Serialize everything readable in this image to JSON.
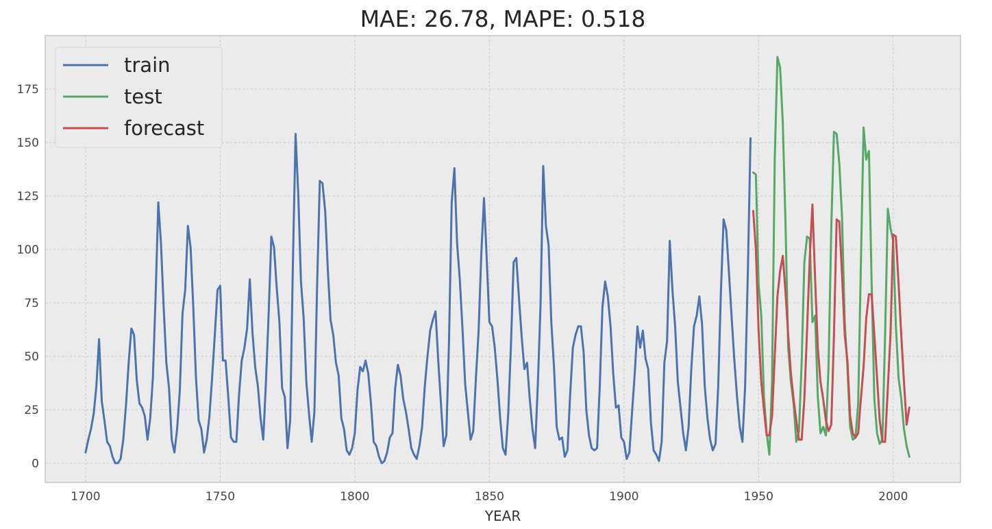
{
  "chart_data": {
    "type": "line",
    "title": "MAE: 26.78, MAPE: 0.518",
    "xlabel": "YEAR",
    "ylabel": "",
    "xlim": [
      1685,
      2025
    ],
    "ylim": [
      -9,
      200
    ],
    "xticks": [
      1700,
      1750,
      1800,
      1850,
      1900,
      1950,
      2000
    ],
    "yticks": [
      0,
      25,
      50,
      75,
      100,
      125,
      150,
      175
    ],
    "grid": true,
    "legend_position": "top-left",
    "background": "#ebebeb",
    "series": [
      {
        "name": "train",
        "color": "#4c72b0",
        "x_start": 1700,
        "values": [
          5,
          11,
          16,
          23,
          36,
          58,
          29,
          20,
          10,
          8,
          3,
          0,
          0,
          2,
          11,
          27,
          47,
          63,
          60,
          39,
          28,
          26,
          22,
          11,
          21,
          40,
          78,
          122,
          103,
          73,
          47,
          35,
          11,
          5,
          16,
          34,
          70,
          81,
          111,
          101,
          73,
          40,
          20,
          16,
          5,
          11,
          22,
          40,
          60,
          81,
          83,
          48,
          48,
          31,
          12,
          10,
          10,
          32,
          48,
          54,
          63,
          86,
          61,
          45,
          36,
          21,
          11,
          38,
          70,
          106,
          101,
          82,
          66,
          35,
          31,
          7,
          20,
          93,
          154,
          126,
          85,
          68,
          38,
          23,
          10,
          24,
          83,
          132,
          131,
          118,
          90,
          67,
          60,
          47,
          41,
          21,
          16,
          6,
          4,
          7,
          14,
          34,
          45,
          43,
          48,
          42,
          28,
          10,
          8,
          3,
          0,
          1,
          5,
          12,
          14,
          35,
          46,
          41,
          30,
          24,
          16,
          7,
          4,
          2,
          8,
          17,
          36,
          50,
          62,
          67,
          71,
          48,
          28,
          8,
          13,
          57,
          122,
          138,
          103,
          86,
          63,
          37,
          24,
          11,
          15,
          40,
          62,
          98,
          124,
          96,
          66,
          64,
          54,
          39,
          21,
          7,
          4,
          23,
          55,
          94,
          96,
          77,
          59,
          44,
          47,
          30,
          16,
          7,
          37,
          74,
          139,
          111,
          102,
          66,
          45,
          17,
          11,
          12,
          3,
          6,
          32,
          54,
          60,
          64,
          64,
          52,
          25,
          13,
          7,
          6,
          7,
          36,
          73,
          85,
          78,
          64,
          42,
          26,
          27,
          12,
          10,
          2,
          5,
          24,
          42,
          64,
          54,
          62,
          49,
          44,
          19,
          6,
          4,
          1,
          10,
          47,
          57,
          104,
          81,
          64,
          38,
          26,
          14,
          6,
          17,
          44,
          64,
          69,
          78,
          65,
          36,
          21,
          11,
          6,
          9,
          36,
          80,
          114,
          109,
          89,
          68,
          48,
          31,
          17,
          10,
          36,
          89,
          152
        ]
      },
      {
        "name": "test",
        "color": "#55a868",
        "x_start": 1948,
        "values": [
          136,
          135,
          84,
          69,
          31,
          14,
          4,
          38,
          142,
          190,
          185,
          159,
          112,
          54,
          38,
          28,
          10,
          15,
          47,
          94,
          106,
          105,
          66,
          69,
          31,
          14,
          17,
          13,
          46,
          110,
          155,
          154,
          140,
          115,
          66,
          45,
          17,
          11,
          12,
          28,
          93,
          157,
          142,
          146,
          84,
          30,
          14,
          9,
          11,
          60,
          119,
          110,
          104,
          64,
          40,
          30,
          16,
          8,
          3
        ]
      },
      {
        "name": "forecast",
        "color": "#c44e52",
        "x_start": 1948,
        "values": [
          118,
          100,
          62,
          38,
          25,
          13,
          13,
          22,
          50,
          78,
          90,
          97,
          80,
          60,
          42,
          30,
          20,
          11,
          11,
          30,
          62,
          96,
          121,
          86,
          54,
          38,
          30,
          20,
          15,
          18,
          60,
          114,
          113,
          88,
          60,
          48,
          22,
          14,
          12,
          14,
          30,
          45,
          68,
          79,
          79,
          60,
          40,
          20,
          10,
          10,
          35,
          60,
          107,
          106,
          84,
          60,
          38,
          18,
          26
        ]
      }
    ]
  }
}
